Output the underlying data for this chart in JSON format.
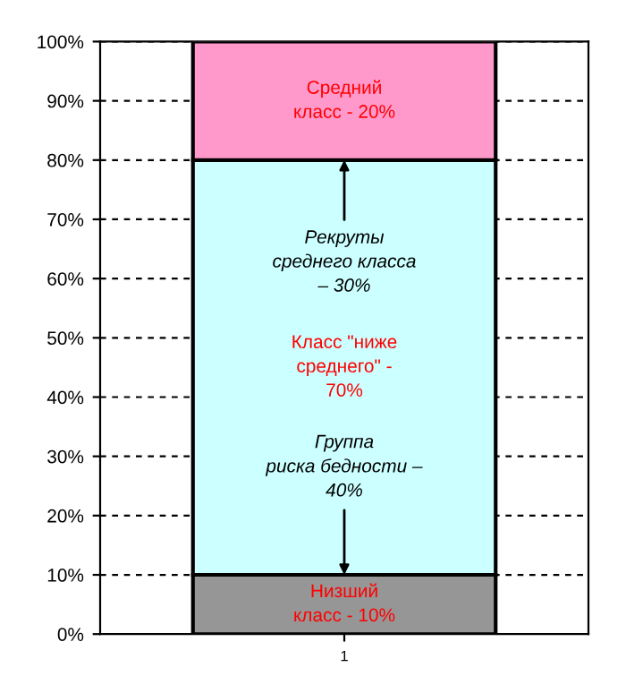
{
  "chart_data": {
    "type": "bar",
    "stacked": true,
    "categories": [
      "1"
    ],
    "series": [
      {
        "color": "#969696",
        "values": [
          10
        ]
      },
      {
        "color": "#ccffff",
        "values": [
          70
        ]
      },
      {
        "color": "#ff99cc",
        "values": [
          20
        ]
      }
    ],
    "ylim": [
      0,
      100
    ],
    "yticks": [
      {
        "value": 0,
        "label": "0%"
      },
      {
        "value": 10,
        "label": "10%"
      },
      {
        "value": 20,
        "label": "20%"
      },
      {
        "value": 30,
        "label": "30%"
      },
      {
        "value": 40,
        "label": "40%"
      },
      {
        "value": 50,
        "label": "50%"
      },
      {
        "value": 60,
        "label": "60%"
      },
      {
        "value": 70,
        "label": "70%"
      },
      {
        "value": 80,
        "label": "80%"
      },
      {
        "value": 90,
        "label": "90%"
      },
      {
        "value": 100,
        "label": "100%"
      }
    ],
    "grid": "y",
    "annotations": [
      "Низший\nкласс - 10%",
      "Класс \"ниже\nсреднего\" -\n70%",
      "Средний\nкласс - 20%",
      {
        "text": "Рекруты\nсреднего класса\n– 30%",
        "x": "1",
        "y": 80
      },
      {
        "text": "Группа\nриска бедности –\n40%",
        "x": "1",
        "y": 10
      }
    ]
  }
}
